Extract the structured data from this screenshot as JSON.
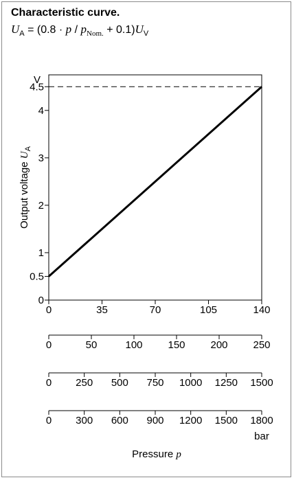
{
  "title": "Characteristic curve.",
  "formula": {
    "lhs_var": "U",
    "lhs_sub": "A",
    "middle": " = (0.8 · ",
    "p": "p",
    "slash": " / ",
    "p2": "p",
    "p_sub": "Nom.",
    "tail": " + 0.1)",
    "rhs_var": "U",
    "rhs_sub": "V"
  },
  "chart_data": {
    "type": "line",
    "title": "Characteristic curve.",
    "ylabel": "Output voltage",
    "ylabel_var": "U",
    "ylabel_sub": "A",
    "y_unit": "V",
    "ylim": [
      0,
      4.75
    ],
    "yticks": [
      "0",
      "0.5",
      "1",
      "2",
      "3",
      "4",
      "4.5"
    ],
    "ytick_values": [
      0,
      0.5,
      1,
      2,
      3,
      4,
      4.5
    ],
    "xlabel": "Pressure",
    "xlabel_var": "p",
    "x_unit": "bar",
    "grid": false,
    "reference_line": {
      "y": 4.5,
      "style": "dashed"
    },
    "x_scales": [
      {
        "range": [
          0,
          140
        ],
        "ticks": [
          "0",
          "35",
          "70",
          "105",
          "140"
        ]
      },
      {
        "range": [
          0,
          250
        ],
        "ticks": [
          "0",
          "50",
          "100",
          "150",
          "200",
          "250"
        ]
      },
      {
        "range": [
          0,
          1500
        ],
        "ticks": [
          "0",
          "250",
          "500",
          "750",
          "1000",
          "1250",
          "1500"
        ]
      },
      {
        "range": [
          0,
          1800
        ],
        "ticks": [
          "0",
          "300",
          "600",
          "900",
          "1200",
          "1500",
          "1800"
        ]
      }
    ],
    "series": [
      {
        "x": [
          0,
          1
        ],
        "y": [
          0.5,
          4.5
        ]
      }
    ]
  }
}
